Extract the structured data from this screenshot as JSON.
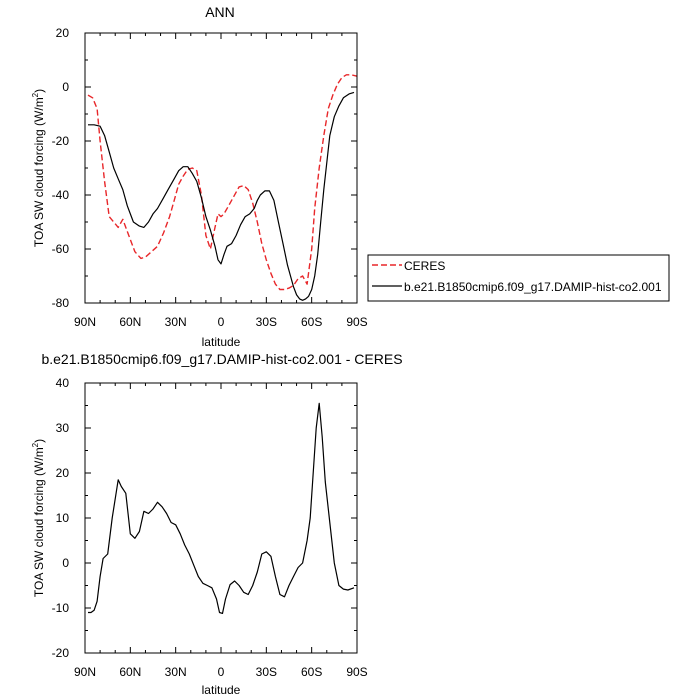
{
  "chart_data": [
    {
      "type": "line",
      "title": "ANN",
      "xlabel": "latitude",
      "ylabel_main": "TOA SW cloud forcing (W/m",
      "ylabel_sup": "2",
      "ylabel_close": ")",
      "xlim": [
        90,
        -90
      ],
      "ylim": [
        -80,
        20
      ],
      "xticks": [
        90,
        60,
        30,
        0,
        -30,
        -60,
        -90
      ],
      "xticklabels": [
        "90N",
        "60N",
        "30N",
        "0",
        "30S",
        "60S",
        "90S"
      ],
      "yticks": [
        20,
        0,
        -20,
        -40,
        -60,
        -80
      ],
      "yticklabels": [
        "20",
        "0",
        "-20",
        "-40",
        "-60",
        "-80"
      ],
      "legend": {
        "placement": "right",
        "entries": [
          "CERES",
          "b.e21.B1850cmip6.f09_g17.DAMIP-hist-co2.001"
        ]
      },
      "series": [
        {
          "name": "CERES",
          "color": "#e8272a",
          "dash": "dashed",
          "x": [
            88,
            85,
            82,
            80,
            77,
            74,
            71,
            68,
            65,
            61,
            57,
            53,
            50,
            46,
            42,
            38,
            34,
            31,
            28,
            25,
            22,
            19,
            16,
            13,
            10,
            7,
            4,
            2,
            0,
            -2,
            -5,
            -8,
            -12,
            -15,
            -18,
            -21,
            -24,
            -27,
            -30,
            -33,
            -36,
            -39,
            -42,
            -45,
            -48,
            -51,
            -54,
            -57,
            -60,
            -62,
            -65,
            -68,
            -71,
            -74,
            -77,
            -80,
            -83,
            -86,
            -90
          ],
          "y": [
            -3,
            -4,
            -8,
            -20,
            -35,
            -48,
            -50,
            -52,
            -49,
            -55,
            -61,
            -63.5,
            -63,
            -61,
            -59,
            -54,
            -48,
            -42,
            -36,
            -33,
            -30.5,
            -30,
            -31,
            -40,
            -55,
            -60,
            -52,
            -47,
            -48,
            -47,
            -44,
            -41,
            -37,
            -36.5,
            -38,
            -43,
            -50,
            -58,
            -64,
            -69,
            -73,
            -75,
            -75,
            -74.5,
            -73.5,
            -71,
            -70,
            -73,
            -60,
            -45,
            -30,
            -18,
            -8,
            -3,
            1,
            3.5,
            4.5,
            4.5,
            4
          ]
        },
        {
          "name": "b.e21.B1850cmip6.f09_g17.DAMIP-hist-co2.001",
          "color": "#000000",
          "dash": "solid",
          "x": [
            88,
            84,
            80,
            77,
            74,
            71,
            68,
            65,
            62,
            58,
            54,
            51,
            48,
            45,
            42,
            38,
            35,
            31,
            28,
            25,
            22,
            19,
            16,
            13,
            10,
            7,
            4,
            2,
            0,
            -2,
            -4,
            -7,
            -10,
            -13,
            -16,
            -19,
            -22,
            -24,
            -26,
            -29,
            -32,
            -35,
            -38,
            -41,
            -44,
            -46,
            -48,
            -50,
            -52,
            -54,
            -56,
            -58,
            -60,
            -62,
            -64,
            -66,
            -68,
            -70,
            -72,
            -75,
            -78,
            -81,
            -85,
            -88
          ],
          "y": [
            -14,
            -14,
            -14.5,
            -18,
            -24,
            -30,
            -34,
            -38,
            -44,
            -50,
            -51.5,
            -52,
            -50,
            -47,
            -45,
            -41,
            -38,
            -34,
            -31,
            -29.5,
            -29.5,
            -32,
            -35,
            -41,
            -48,
            -53,
            -59,
            -64,
            -65.5,
            -62,
            -59,
            -58,
            -55,
            -51,
            -48,
            -47,
            -45,
            -42,
            -40,
            -38.5,
            -38.5,
            -42,
            -50,
            -58,
            -66,
            -70,
            -74,
            -77,
            -78.5,
            -79,
            -78.5,
            -77.5,
            -75,
            -70,
            -62,
            -50,
            -38,
            -28,
            -18,
            -11,
            -7,
            -4,
            -2.5,
            -2
          ]
        }
      ]
    },
    {
      "type": "line",
      "title": "b.e21.B1850cmip6.f09_g17.DAMIP-hist-co2.001 - CERES",
      "xlabel": "latitude",
      "ylabel_main": "TOA SW cloud forcing (W/m",
      "ylabel_sup": "2",
      "ylabel_close": ")",
      "xlim": [
        90,
        -90
      ],
      "ylim": [
        -20,
        40
      ],
      "xticks": [
        90,
        60,
        30,
        0,
        -30,
        -60,
        -90
      ],
      "xticklabels": [
        "90N",
        "60N",
        "30N",
        "0",
        "30S",
        "60S",
        "90S"
      ],
      "yticks": [
        40,
        30,
        20,
        10,
        0,
        -10,
        -20
      ],
      "yticklabels": [
        "40",
        "30",
        "20",
        "10",
        "0",
        "-10",
        "-20"
      ],
      "series": [
        {
          "color": "#000000",
          "dash": "solid",
          "x": [
            88,
            86,
            84,
            82,
            80,
            78,
            75,
            72,
            68,
            66,
            63,
            60,
            57,
            54,
            51,
            48,
            45,
            42,
            39,
            36,
            33,
            30,
            27,
            24,
            21,
            18,
            15,
            12,
            9,
            6,
            3,
            1,
            -1,
            -3,
            -6,
            -9,
            -12,
            -15,
            -18,
            -21,
            -24,
            -27,
            -30,
            -33,
            -36,
            -39,
            -42,
            -45,
            -48,
            -51,
            -54,
            -57,
            -59,
            -61,
            -63,
            -65,
            -67,
            -69,
            -72,
            -75,
            -78,
            -81,
            -84,
            -88
          ],
          "y": [
            -11,
            -11,
            -10.5,
            -8.5,
            -3,
            1,
            2,
            10,
            18.5,
            17,
            15.5,
            6.5,
            5.5,
            7,
            11.5,
            11,
            12,
            13.5,
            12.5,
            11,
            9,
            8.5,
            6.5,
            4,
            2,
            -0.5,
            -3,
            -4.5,
            -5,
            -5.5,
            -8,
            -11,
            -11.2,
            -8,
            -4.8,
            -4,
            -5,
            -6.5,
            -7,
            -5,
            -2,
            2,
            2.5,
            1.5,
            -3,
            -7,
            -7.5,
            -5,
            -3,
            -1,
            0,
            5,
            10,
            20,
            30,
            35.5,
            28,
            18,
            9,
            0,
            -5,
            -5.8,
            -6,
            -5.5
          ]
        }
      ]
    }
  ]
}
